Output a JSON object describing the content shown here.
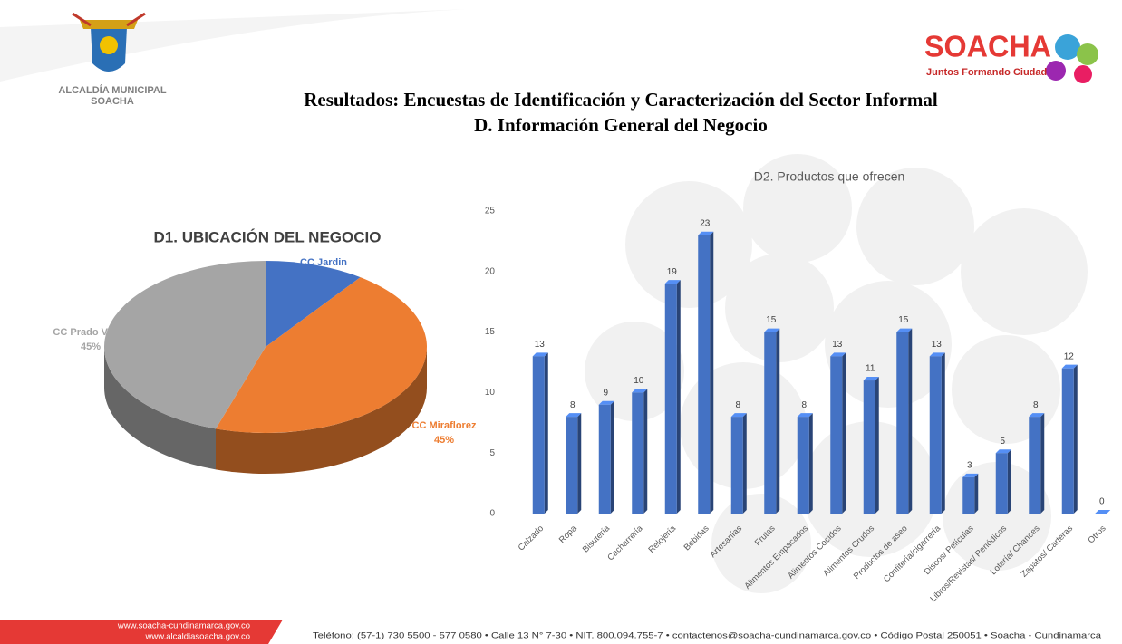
{
  "header": {
    "left_logo": [
      "ALCALDÍA MUNICIPAL",
      "SOACHA"
    ],
    "right_logo": {
      "name": "SOACHA",
      "slogan": "Juntos Formando Ciudad"
    },
    "title": [
      "Resultados: Encuestas de Identificación y Caracterización del Sector Informal",
      "D. Información General del Negocio"
    ]
  },
  "chart_data": [
    {
      "type": "pie",
      "title": "D1. UBICACIÓN DEL NEGOCIO",
      "categories": [
        "CC Jardin",
        "CC Miraflorez",
        "CC Prado Verde"
      ],
      "values": [
        10,
        45,
        45
      ],
      "value_labels": [
        "10%",
        "45%",
        "45%"
      ],
      "colors": [
        "#4472c4",
        "#ed7d31",
        "#a5a5a5"
      ]
    },
    {
      "type": "bar",
      "title": "D2. Productos que ofrecen",
      "categories": [
        "Calzado",
        "Ropa",
        "Bisutería",
        "Cacharrería",
        "Relojería",
        "Bebidas",
        "Artesanías",
        "Frutas",
        "Alimentos Empacados",
        "Alimentos Cocidos",
        "Alimentos Crudos",
        "Productos de aseo",
        "Confitería/cigarrería",
        "Discos/ Películas",
        "Libros/Revistas/ Periódicos",
        "Lotería/ Chances",
        "Zapatos/ Carteras",
        "Otros"
      ],
      "values": [
        13,
        8,
        9,
        10,
        19,
        23,
        8,
        15,
        8,
        13,
        11,
        15,
        13,
        3,
        5,
        8,
        12,
        0
      ],
      "color": "#4472c4",
      "ylim": [
        0,
        25
      ],
      "yticks": [
        0,
        5,
        10,
        15,
        20,
        25
      ],
      "grid": false,
      "data_labels": true
    }
  ],
  "footer": {
    "websites": [
      "www.soacha-cundinamarca.gov.co",
      "www.alcaldiasoacha.gov.co"
    ],
    "contact": "Teléfono: (57-1) 730 5500 - 577 0580 • Calle 13 N° 7-30 • NIT. 800.094.755-7 • contactenos@soacha-cundinamarca.gov.co • Código Postal 250051 • Soacha - Cundinamarca"
  }
}
